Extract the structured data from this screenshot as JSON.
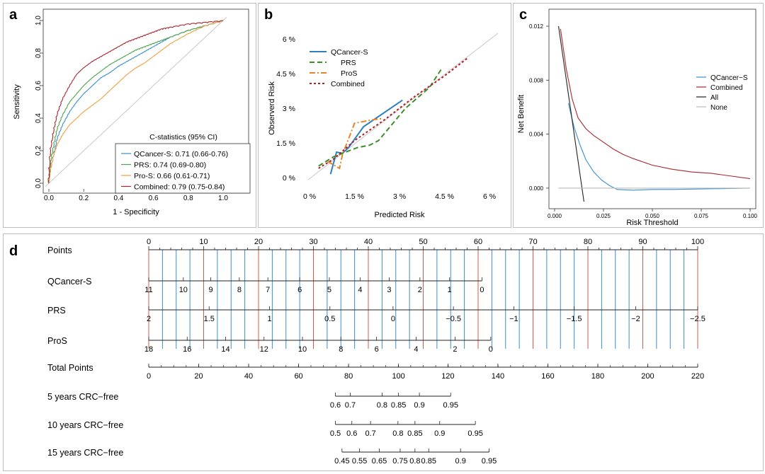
{
  "panels": {
    "a": "a",
    "b": "b",
    "c": "c",
    "d": "d"
  },
  "colors": {
    "qcancer": "#3a8fd0",
    "prs": "#4aa64a",
    "pros": "#f0a040",
    "combined": "#a8282e",
    "b_qcancer": "#2e7fbf",
    "b_prs": "#3e8f2a",
    "b_pros": "#e8852a",
    "b_combined": "#b01e2a",
    "nomo_red": "#d45a4a",
    "nomo_blue": "#3a8fc8"
  },
  "chart_data": [
    {
      "panel": "a",
      "type": "line",
      "xlabel": "1 - Specificity",
      "ylabel": "Sensitivity",
      "xlim": [
        0,
        1
      ],
      "ylim": [
        0,
        1
      ],
      "xticks": [
        "0.0",
        "0.2",
        "0.4",
        "0.6",
        "0.8",
        "1.0"
      ],
      "yticks": [
        "0.0",
        "0.2",
        "0.4",
        "0.6",
        "0.8",
        "1.0"
      ],
      "legend_title": "C-statistics (95% CI)",
      "series": [
        {
          "name": "QCancer-S: 0.71 (0.66-0.76)",
          "key": "qcancer",
          "x": [
            0,
            0.01,
            0.03,
            0.05,
            0.08,
            0.12,
            0.16,
            0.2,
            0.25,
            0.3,
            0.35,
            0.4,
            0.45,
            0.5,
            0.55,
            0.6,
            0.65,
            0.7,
            0.8,
            0.9,
            1.0
          ],
          "y": [
            0,
            0.08,
            0.18,
            0.28,
            0.36,
            0.44,
            0.5,
            0.55,
            0.6,
            0.65,
            0.68,
            0.72,
            0.75,
            0.78,
            0.81,
            0.84,
            0.87,
            0.9,
            0.94,
            0.97,
            1.0
          ]
        },
        {
          "name": "PRS: 0.74 (0.69-0.80)",
          "key": "prs",
          "x": [
            0,
            0.01,
            0.03,
            0.05,
            0.08,
            0.12,
            0.16,
            0.2,
            0.25,
            0.3,
            0.35,
            0.4,
            0.45,
            0.5,
            0.55,
            0.6,
            0.65,
            0.7,
            0.8,
            0.9,
            1.0
          ],
          "y": [
            0,
            0.12,
            0.24,
            0.34,
            0.42,
            0.5,
            0.55,
            0.6,
            0.65,
            0.69,
            0.73,
            0.76,
            0.79,
            0.82,
            0.84,
            0.86,
            0.88,
            0.9,
            0.94,
            0.97,
            1.0
          ]
        },
        {
          "name": "Pro-S: 0.66 (0.61-0.71)",
          "key": "pros",
          "x": [
            0,
            0.01,
            0.03,
            0.05,
            0.08,
            0.12,
            0.16,
            0.2,
            0.25,
            0.3,
            0.35,
            0.4,
            0.45,
            0.5,
            0.55,
            0.6,
            0.65,
            0.7,
            0.8,
            0.9,
            1.0
          ],
          "y": [
            0,
            0.08,
            0.18,
            0.24,
            0.3,
            0.36,
            0.4,
            0.44,
            0.48,
            0.52,
            0.57,
            0.62,
            0.67,
            0.71,
            0.74,
            0.78,
            0.82,
            0.86,
            0.92,
            0.97,
            1.0
          ]
        },
        {
          "name": "Combined: 0.79 (0.75-0.84)",
          "key": "combined",
          "x": [
            0,
            0.01,
            0.03,
            0.05,
            0.08,
            0.12,
            0.16,
            0.2,
            0.25,
            0.3,
            0.35,
            0.4,
            0.45,
            0.5,
            0.55,
            0.6,
            0.65,
            0.7,
            0.8,
            0.9,
            1.0
          ],
          "y": [
            0,
            0.2,
            0.33,
            0.43,
            0.52,
            0.6,
            0.67,
            0.71,
            0.75,
            0.78,
            0.81,
            0.84,
            0.87,
            0.89,
            0.91,
            0.93,
            0.95,
            0.96,
            0.98,
            0.99,
            1.0
          ]
        }
      ]
    },
    {
      "panel": "b",
      "type": "line",
      "xlabel": "Predicted Risk",
      "ylabel": "Observerd Risk",
      "xlim": [
        0,
        6
      ],
      "ylim": [
        0,
        6
      ],
      "xticks": [
        "0 %",
        "1.5 %",
        "3 %",
        "4.5 %",
        "6 %"
      ],
      "yticks": [
        "0 %",
        "1.5 %",
        "3 %",
        "4.5 %",
        "6 %"
      ],
      "series": [
        {
          "name": "QCancer-S",
          "key": "b_qcancer",
          "style": "solid",
          "x": [
            0.7,
            0.9,
            1.1,
            1.3,
            1.8,
            3.1
          ],
          "y": [
            0.15,
            1.1,
            1.05,
            1.3,
            2.2,
            3.35
          ]
        },
        {
          "name": "PRS",
          "key": "b_prs",
          "style": "dashed",
          "x": [
            0.3,
            0.8,
            1.2,
            1.6,
            2.0,
            2.3,
            3.2,
            4.0,
            4.4
          ],
          "y": [
            0.5,
            0.9,
            1.1,
            1.3,
            1.4,
            1.6,
            3.0,
            3.9,
            4.7
          ]
        },
        {
          "name": "ProS",
          "key": "b_pros",
          "style": "dashdot",
          "x": [
            0.6,
            1.0,
            1.1,
            1.5,
            2.1,
            2.4
          ],
          "y": [
            0.7,
            0.4,
            1.0,
            2.35,
            2.5,
            2.55
          ]
        },
        {
          "name": "Combined",
          "key": "b_combined",
          "style": "dotted",
          "x": [
            0.3,
            0.8,
            1.5,
            2.5,
            3.5,
            4.5,
            5.3
          ],
          "y": [
            0.4,
            0.8,
            1.6,
            2.5,
            3.5,
            4.4,
            5.2
          ]
        }
      ]
    },
    {
      "panel": "c",
      "type": "line",
      "xlabel": "Risk Threshold",
      "ylabel": "Net Benefit",
      "xlim": [
        0,
        0.1
      ],
      "ylim": [
        -0.001,
        0.012
      ],
      "xticks": [
        "0.000",
        "0.025",
        "0.050",
        "0.075",
        "0.100"
      ],
      "yticks": [
        "0.000",
        "0.004",
        "0.008",
        "0.012"
      ],
      "series": [
        {
          "name": "QCancer−S",
          "key": "qcancer",
          "x": [
            0.007,
            0.01,
            0.013,
            0.016,
            0.02,
            0.024,
            0.028,
            0.032,
            0.04,
            0.05,
            0.06,
            0.08,
            0.1
          ],
          "y": [
            0.0063,
            0.0045,
            0.0032,
            0.0021,
            0.0012,
            0.0006,
            0.0002,
            -0.0001,
            -0.00015,
            -0.0001,
            -0.0001,
            -5e-05,
            0.0
          ]
        },
        {
          "name": "Combined",
          "key": "combined",
          "x": [
            0.003,
            0.006,
            0.009,
            0.012,
            0.016,
            0.02,
            0.025,
            0.03,
            0.035,
            0.04,
            0.05,
            0.06,
            0.07,
            0.08,
            0.09,
            0.1
          ],
          "y": [
            0.0118,
            0.0088,
            0.0066,
            0.0052,
            0.0044,
            0.0039,
            0.0034,
            0.0029,
            0.0025,
            0.0022,
            0.0017,
            0.0014,
            0.0012,
            0.0011,
            0.0009,
            0.0007
          ]
        },
        {
          "name": "All",
          "key": "all",
          "color": "#222222",
          "x": [
            0.002,
            0.015
          ],
          "y": [
            0.012,
            -0.001
          ]
        },
        {
          "name": "None",
          "key": "none",
          "color": "#bbbbbb",
          "x": [
            0.002,
            0.1
          ],
          "y": [
            0.0,
            0.0
          ]
        }
      ]
    },
    {
      "panel": "d",
      "type": "nomogram",
      "rows": [
        {
          "label": "Points",
          "kind": "scale",
          "min": 0,
          "max": 100,
          "ticks": [
            {
              "v": 0,
              "t": "0"
            },
            {
              "v": 10,
              "t": "10"
            },
            {
              "v": 20,
              "t": "20"
            },
            {
              "v": 30,
              "t": "30"
            },
            {
              "v": 40,
              "t": "40"
            },
            {
              "v": 50,
              "t": "50"
            },
            {
              "v": 60,
              "t": "60"
            },
            {
              "v": 70,
              "t": "70"
            },
            {
              "v": 80,
              "t": "80"
            },
            {
              "v": 90,
              "t": "90"
            },
            {
              "v": 100,
              "t": "100"
            }
          ]
        },
        {
          "label": "QCancer-S",
          "kind": "var",
          "below": true,
          "ticks": [
            {
              "v": 0,
              "t": "11"
            },
            {
              "v": 6.3,
              "t": "10"
            },
            {
              "v": 11.3,
              "t": "9"
            },
            {
              "v": 16.5,
              "t": "8"
            },
            {
              "v": 21.7,
              "t": "7"
            },
            {
              "v": 27.5,
              "t": "6"
            },
            {
              "v": 32.9,
              "t": "5"
            },
            {
              "v": 38.5,
              "t": "4"
            },
            {
              "v": 43.8,
              "t": "3"
            },
            {
              "v": 49.4,
              "t": "2"
            },
            {
              "v": 54.8,
              "t": "1"
            },
            {
              "v": 60.7,
              "t": "0"
            }
          ]
        },
        {
          "label": "PRS",
          "kind": "var",
          "below": true,
          "ticks": [
            {
              "v": 0,
              "t": "2"
            },
            {
              "v": 11,
              "t": "1.5"
            },
            {
              "v": 22,
              "t": "1"
            },
            {
              "v": 33,
              "t": "0.5"
            },
            {
              "v": 44.5,
              "t": "0"
            },
            {
              "v": 55.5,
              "t": "−0.5"
            },
            {
              "v": 66.5,
              "t": "−1"
            },
            {
              "v": 77.5,
              "t": "−1.5"
            },
            {
              "v": 88.7,
              "t": "−2"
            },
            {
              "v": 100,
              "t": "−2.5"
            }
          ]
        },
        {
          "label": "ProS",
          "kind": "var",
          "below": true,
          "ticks": [
            {
              "v": 0,
              "t": "18"
            },
            {
              "v": 7,
              "t": "16"
            },
            {
              "v": 14,
              "t": "14"
            },
            {
              "v": 21,
              "t": "12"
            },
            {
              "v": 28,
              "t": "10"
            },
            {
              "v": 35,
              "t": "8"
            },
            {
              "v": 41.5,
              "t": "6"
            },
            {
              "v": 48.7,
              "t": "4"
            },
            {
              "v": 55.8,
              "t": "2"
            },
            {
              "v": 62.3,
              "t": "0"
            }
          ]
        },
        {
          "label": "Total Points",
          "kind": "scale",
          "below": true,
          "ticks": [
            {
              "v": 0,
              "t": "0"
            },
            {
              "v": 9.1,
              "t": "20"
            },
            {
              "v": 18.2,
              "t": "40"
            },
            {
              "v": 27.3,
              "t": "60"
            },
            {
              "v": 36.4,
              "t": "80"
            },
            {
              "v": 45.5,
              "t": "100"
            },
            {
              "v": 54.5,
              "t": "120"
            },
            {
              "v": 63.6,
              "t": "140"
            },
            {
              "v": 72.7,
              "t": "160"
            },
            {
              "v": 81.8,
              "t": "180"
            },
            {
              "v": 90.9,
              "t": "200"
            },
            {
              "v": 100,
              "t": "220"
            }
          ]
        },
        {
          "label": "5 years CRC−free",
          "kind": "scale",
          "below": true,
          "ticks": [
            {
              "v": 34,
              "t": "0.6"
            },
            {
              "v": 36.7,
              "t": "0.7"
            },
            {
              "v": 42.5,
              "t": "0.8"
            },
            {
              "v": 45.5,
              "t": "0.85"
            },
            {
              "v": 49.3,
              "t": "0.9"
            },
            {
              "v": 55,
              "t": "0.95"
            }
          ]
        },
        {
          "label": "10 years CRC−free",
          "kind": "scale",
          "below": true,
          "ticks": [
            {
              "v": 34,
              "t": "0.5"
            },
            {
              "v": 37,
              "t": "0.6"
            },
            {
              "v": 40.4,
              "t": "0.7"
            },
            {
              "v": 45.4,
              "t": "0.8"
            },
            {
              "v": 48.5,
              "t": "0.85"
            },
            {
              "v": 53,
              "t": "0.9"
            },
            {
              "v": 59.5,
              "t": "0.95"
            }
          ]
        },
        {
          "label": "15 years CRC−free",
          "kind": "scale",
          "below": true,
          "ticks": [
            {
              "v": 35.2,
              "t": "0.45"
            },
            {
              "v": 38.4,
              "t": "0.55"
            },
            {
              "v": 42,
              "t": "0.65"
            },
            {
              "v": 45.8,
              "t": "0.75"
            },
            {
              "v": 48.5,
              "t": "0.8"
            },
            {
              "v": 51,
              "t": "0.85"
            },
            {
              "v": 56.8,
              "t": "0.9"
            },
            {
              "v": 62,
              "t": "0.95"
            }
          ]
        }
      ]
    }
  ]
}
